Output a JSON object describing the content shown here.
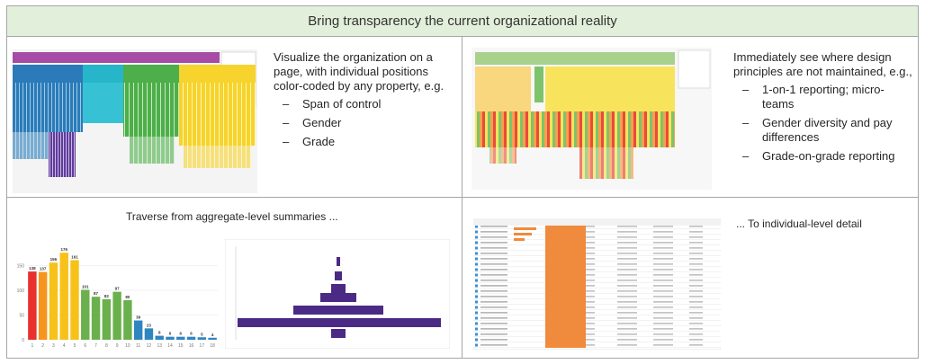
{
  "header": {
    "title": "Bring transparency the current organizational reality"
  },
  "panels": [
    {
      "intro": "Visualize the organization on a page, with individual positions color-coded by any property, e.g.",
      "bullets": [
        "Span of control",
        "Gender",
        "Grade"
      ]
    },
    {
      "intro": "Immediately see where design principles are not maintained, e.g.,",
      "bullets": [
        "1-on-1 reporting; micro-teams",
        "Gender diversity and pay differences",
        "Grade-on-grade reporting"
      ]
    },
    {
      "caption": "Traverse from aggregate-level summaries ..."
    },
    {
      "caption": "... To individual-level detail"
    }
  ],
  "chart_data": {
    "type": "bar",
    "categories": [
      "1",
      "2",
      "3",
      "4",
      "5",
      "6",
      "7",
      "8",
      "9",
      "10",
      "11",
      "12",
      "13",
      "14",
      "15",
      "16",
      "17",
      "18"
    ],
    "values": [
      138,
      137,
      156,
      176,
      161,
      101,
      87,
      82,
      97,
      80,
      39,
      23,
      8,
      6,
      6,
      6,
      5,
      4
    ],
    "colors": [
      "#e8302e",
      "#f7941d",
      "#f6c21a",
      "#f6c21a",
      "#f6c21a",
      "#6ab04c",
      "#6ab04c",
      "#6ab04c",
      "#6ab04c",
      "#6ab04c",
      "#2e86c1",
      "#2e86c1",
      "#2e86c1",
      "#2e86c1",
      "#2e86c1",
      "#2e86c1",
      "#2e86c1",
      "#2e86c1"
    ],
    "ylim": [
      0,
      200
    ],
    "yticks": [
      0,
      50,
      100,
      150
    ],
    "grid": true
  }
}
